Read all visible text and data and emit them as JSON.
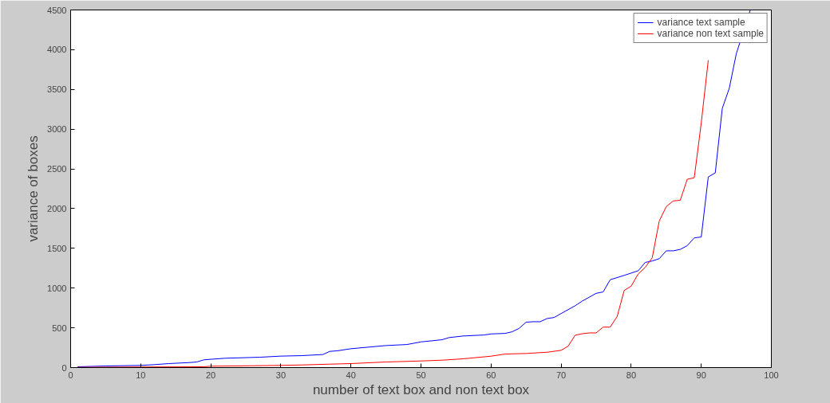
{
  "chart_data": {
    "type": "line",
    "xlabel": "number of text box and non text box",
    "ylabel": "variance of boxes",
    "xlim": [
      0,
      100
    ],
    "ylim": [
      0,
      4500
    ],
    "xticks": [
      0,
      10,
      20,
      30,
      40,
      50,
      60,
      70,
      80,
      90,
      100
    ],
    "yticks": [
      0,
      500,
      1000,
      1500,
      2000,
      2500,
      3000,
      3500,
      4000,
      4500
    ],
    "grid": false,
    "legend": "top right",
    "marker": "none",
    "line_style": "solid",
    "series": [
      {
        "name": "variance text sample",
        "color": "#0000ff",
        "x": [
          1,
          5,
          10,
          12,
          14,
          17,
          18,
          19,
          20,
          22,
          27,
          30,
          33,
          36,
          37,
          38,
          40,
          45,
          48,
          50,
          53,
          54,
          56,
          59,
          60,
          62,
          63,
          64,
          65,
          66,
          67,
          68,
          69,
          70,
          72,
          73,
          75,
          76,
          77,
          79,
          80,
          81,
          82,
          83,
          84,
          85,
          86,
          87,
          88,
          89,
          90,
          91,
          92,
          93,
          94,
          95,
          97
        ],
        "values": [
          10,
          20,
          27,
          37,
          50,
          63,
          70,
          97,
          104,
          117,
          130,
          144,
          150,
          164,
          204,
          210,
          237,
          277,
          290,
          323,
          350,
          377,
          397,
          410,
          423,
          430,
          450,
          493,
          571,
          577,
          577,
          617,
          630,
          680,
          778,
          836,
          934,
          952,
          1105,
          1160,
          1189,
          1218,
          1323,
          1341,
          1370,
          1469,
          1469,
          1487,
          1534,
          1632,
          1643,
          2399,
          2450,
          3261,
          3515,
          3950,
          4500
        ]
      },
      {
        "name": "variance non text sample",
        "color": "#ff0000",
        "x": [
          1,
          10,
          19,
          20,
          26,
          30,
          33,
          37,
          40,
          45,
          50,
          53,
          56,
          60,
          62,
          65,
          68,
          70,
          71,
          72,
          73,
          74,
          75,
          76,
          77,
          78,
          79,
          80,
          81,
          82,
          83,
          84,
          85,
          86,
          87,
          88,
          89,
          90,
          91
        ],
        "values": [
          3,
          7,
          10,
          17,
          23,
          27,
          33,
          43,
          50,
          70,
          83,
          93,
          110,
          143,
          170,
          177,
          193,
          217,
          269,
          407,
          425,
          436,
          436,
          509,
          509,
          643,
          970,
          1025,
          1178,
          1261,
          1381,
          1843,
          2025,
          2097,
          2105,
          2370,
          2388,
          3079,
          3868
        ]
      }
    ]
  }
}
